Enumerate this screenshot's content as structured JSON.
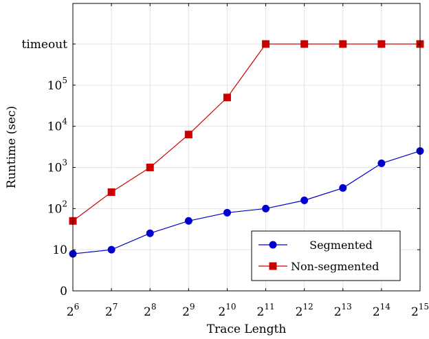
{
  "chart_data": {
    "type": "line",
    "xlabel": "Trace Length",
    "ylabel": "Runtime (sec)",
    "x_ticks": [
      {
        "base": "2",
        "exp": "6"
      },
      {
        "base": "2",
        "exp": "7"
      },
      {
        "base": "2",
        "exp": "8"
      },
      {
        "base": "2",
        "exp": "9"
      },
      {
        "base": "2",
        "exp": "10"
      },
      {
        "base": "2",
        "exp": "11"
      },
      {
        "base": "2",
        "exp": "12"
      },
      {
        "base": "2",
        "exp": "13"
      },
      {
        "base": "2",
        "exp": "14"
      },
      {
        "base": "2",
        "exp": "15"
      }
    ],
    "x": [
      6,
      7,
      8,
      9,
      10,
      11,
      12,
      13,
      14,
      15
    ],
    "y_scale": "categorical log-like (levels: 0, 10, 10^2, 10^3, 10^4, 10^5, timeout)",
    "y_ticks": [
      {
        "label": "0",
        "base": "",
        "exp": "",
        "level": 0
      },
      {
        "label": "10",
        "base": "",
        "exp": "",
        "level": 1
      },
      {
        "label": "",
        "base": "10",
        "exp": "2",
        "level": 2
      },
      {
        "label": "",
        "base": "10",
        "exp": "3",
        "level": 3
      },
      {
        "label": "",
        "base": "10",
        "exp": "4",
        "level": 4
      },
      {
        "label": "",
        "base": "10",
        "exp": "5",
        "level": 5
      },
      {
        "label": "timeout",
        "base": "",
        "exp": "",
        "level": 6
      }
    ],
    "grid": true,
    "legend_position": "bottom-right",
    "series": [
      {
        "name": "Segmented",
        "color": "#0000cc",
        "marker": "circle",
        "level_values": [
          0.9,
          1.0,
          1.4,
          1.7,
          1.9,
          2.0,
          2.2,
          2.5,
          3.1,
          3.4
        ]
      },
      {
        "name": "Non-segmented",
        "color": "#cc0000",
        "marker": "square",
        "level_values": [
          1.7,
          2.4,
          3.0,
          3.8,
          4.7,
          6.0,
          6.0,
          6.0,
          6.0,
          6.0
        ]
      }
    ]
  }
}
